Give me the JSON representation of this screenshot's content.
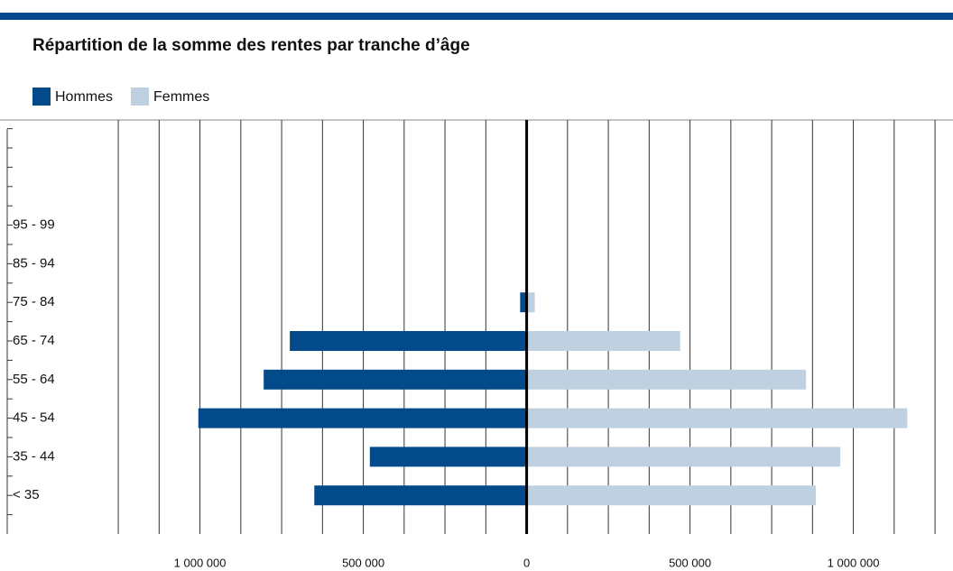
{
  "chart_data": {
    "type": "bar",
    "orientation": "horizontal",
    "title": "Répartition de la somme des rentes par tranche d’âge",
    "categories": [
      null,
      null,
      "95 - 99",
      "85 - 94",
      "75 - 84",
      "65 - 74",
      "55 - 64",
      "45 - 54",
      "35 - 44",
      "< 35"
    ],
    "series": [
      {
        "name": "Hommes",
        "color": "#034a8a",
        "values": [
          null,
          null,
          0,
          0,
          -20000,
          -725000,
          -805000,
          -1005000,
          -480000,
          -650000
        ]
      },
      {
        "name": "Femmes",
        "color": "#bfd0e0",
        "values": [
          null,
          null,
          0,
          0,
          25000,
          470000,
          855000,
          1165000,
          960000,
          885000
        ]
      }
    ],
    "xlim": [
      -1590000,
      1305000
    ],
    "xticks": [
      {
        "value": -1000000,
        "label": "1 000 000"
      },
      {
        "value": -500000,
        "label": "500 000"
      },
      0,
      {
        "value": 500000,
        "label": "500 000"
      },
      {
        "value": 1000000,
        "label": "1 000 000"
      }
    ],
    "minor_xticks": [
      -1250000,
      -1125000,
      -1000000,
      -875000,
      -750000,
      -625000,
      -500000,
      -375000,
      -250000,
      -125000,
      0,
      125000,
      250000,
      375000,
      500000,
      625000,
      750000,
      875000,
      1000000,
      1125000,
      1250000
    ],
    "grid": true,
    "legend": "top-left"
  }
}
